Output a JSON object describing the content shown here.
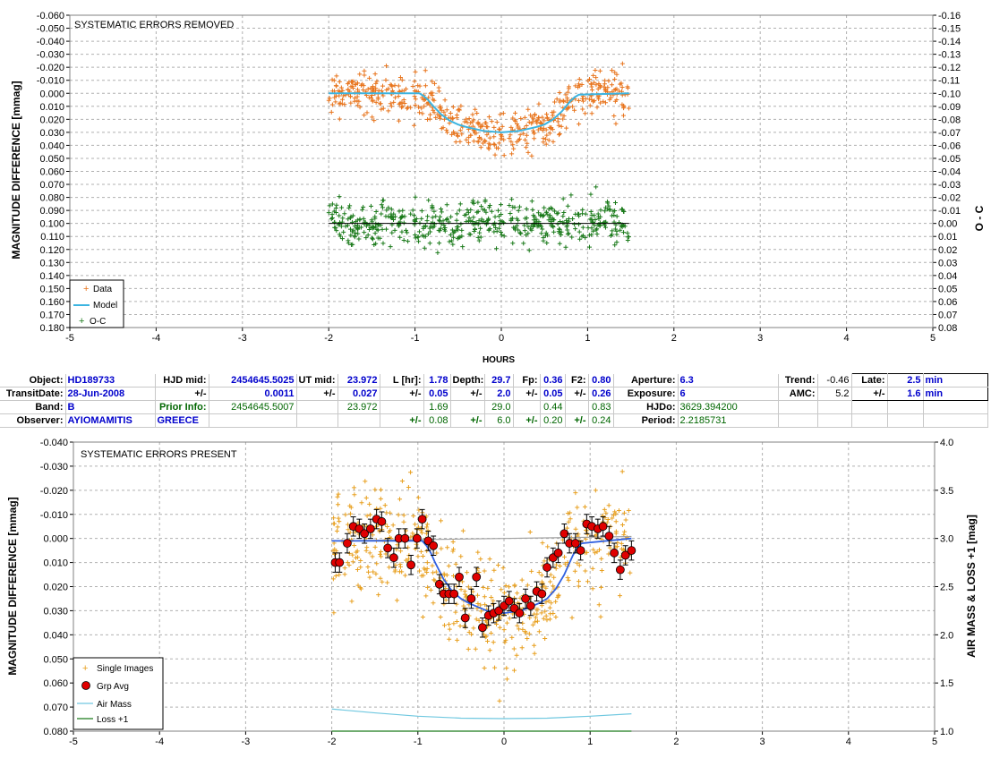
{
  "chart_data": [
    {
      "type": "scatter",
      "title": "SYSTEMATIC ERRORS REMOVED",
      "xlabel": "HOURS",
      "ylabel": "MAGNITUDE DIFFERENCE [mmag]",
      "y2label": "O - C",
      "xlim": [
        -5,
        5
      ],
      "ylim": [
        -0.06,
        0.18
      ],
      "y_inverted": true,
      "y2lim": [
        -0.16,
        0.08
      ],
      "y2_inverted": true,
      "grid": true,
      "legend_position": "bottom-left",
      "x_ticks": [
        "-5",
        "-4",
        "-3",
        "-2",
        "-1",
        "0",
        "1",
        "2",
        "3",
        "4",
        "5"
      ],
      "y_ticks": [
        "-0.060",
        "-0.050",
        "-0.040",
        "-0.030",
        "-0.020",
        "-0.010",
        "0.000",
        "0.010",
        "0.020",
        "0.030",
        "0.040",
        "0.050",
        "0.060",
        "0.070",
        "0.080",
        "0.090",
        "0.100",
        "0.110",
        "0.120",
        "0.130",
        "0.140",
        "0.150",
        "0.160",
        "0.170",
        "0.180"
      ],
      "y2_ticks": [
        "-0.16",
        "-0.15",
        "-0.14",
        "-0.13",
        "-0.12",
        "-0.11",
        "-0.10",
        "-0.09",
        "-0.08",
        "-0.07",
        "-0.06",
        "-0.05",
        "-0.04",
        "-0.03",
        "-0.02",
        "-0.01",
        "0.00",
        "0.01",
        "0.02",
        "0.03",
        "0.04",
        "0.05",
        "0.06",
        "0.07",
        "0.08"
      ],
      "series": [
        {
          "name": "Data",
          "color": "#e8741c",
          "marker": "plus",
          "count": 520,
          "x_range": [
            -2.0,
            1.48
          ],
          "scatter_sigma": 0.0085
        },
        {
          "name": "Model",
          "color": "#3cb4e0",
          "style": "line",
          "x": [
            -2.0,
            -0.95,
            -0.9,
            -0.85,
            -0.8,
            -0.7,
            -0.6,
            -0.5,
            -0.4,
            -0.2,
            0,
            0.2,
            0.4,
            0.5,
            0.6,
            0.7,
            0.75,
            0.8,
            0.85,
            0.9,
            1.48
          ],
          "y": [
            0,
            0,
            0.002,
            0.005,
            0.009,
            0.016,
            0.021,
            0.024,
            0.026,
            0.029,
            0.03,
            0.029,
            0.026,
            0.024,
            0.02,
            0.014,
            0.01,
            0.006,
            0.003,
            0.001,
            0
          ]
        },
        {
          "name": "O-C",
          "color": "#1a7a1a",
          "marker": "plus",
          "count": 520,
          "x_range": [
            -2.0,
            1.48
          ],
          "center": 0.0,
          "scatter_sigma": 0.0085,
          "axis": "y2"
        }
      ],
      "zero_line_y2": 0.0
    },
    {
      "type": "scatter",
      "title": "SYSTEMATIC ERRORS PRESENT",
      "xlabel": "",
      "ylabel": "MAGNITUDE DIFFERENCE [mmag]",
      "y2label": "AIR MASS & LOSS +1 [mag]",
      "xlim": [
        -5,
        5
      ],
      "ylim": [
        -0.04,
        0.08
      ],
      "y_inverted": true,
      "y2lim": [
        1.0,
        4.0
      ],
      "grid": true,
      "legend_position": "bottom-left",
      "x_ticks": [
        "-5",
        "-4",
        "-3",
        "-2",
        "-1",
        "0",
        "1",
        "2",
        "3",
        "4",
        "5"
      ],
      "y_ticks": [
        "-0.040",
        "-0.030",
        "-0.020",
        "-0.010",
        "0.000",
        "0.010",
        "0.020",
        "0.030",
        "0.040",
        "0.050",
        "0.060",
        "0.070",
        "0.080"
      ],
      "y2_ticks": [
        "1.0",
        "1.5",
        "2.0",
        "2.5",
        "3.0",
        "3.5",
        "4.0"
      ],
      "series": [
        {
          "name": "Single Images",
          "color": "#e8a020",
          "marker": "plus",
          "count": 520,
          "x_range": [
            -2.0,
            1.48
          ],
          "scatter_sigma": 0.0105
        },
        {
          "name": "Grp Avg",
          "color": "#e00000",
          "marker": "circle",
          "error_bars": true,
          "x": [
            -1.96,
            -1.91,
            -1.82,
            -1.75,
            -1.68,
            -1.62,
            -1.55,
            -1.48,
            -1.42,
            -1.35,
            -1.28,
            -1.22,
            -1.15,
            -1.08,
            -1.01,
            -0.95,
            -0.88,
            -0.82,
            -0.75,
            -0.7,
            -0.64,
            -0.58,
            -0.52,
            -0.45,
            -0.38,
            -0.32,
            -0.25,
            -0.18,
            -0.12,
            -0.06,
            0,
            0.06,
            0.12,
            0.18,
            0.25,
            0.31,
            0.38,
            0.44,
            0.5,
            0.57,
            0.63,
            0.7,
            0.76,
            0.83,
            0.89,
            0.96,
            1.02,
            1.09,
            1.15,
            1.22,
            1.28,
            1.35,
            1.41,
            1.48
          ],
          "y": [
            0.01,
            0.01,
            0.002,
            -0.005,
            -0.004,
            -0.002,
            -0.004,
            -0.008,
            -0.007,
            0.004,
            0.008,
            0.0,
            0.0,
            0.011,
            0.0,
            -0.008,
            0.001,
            0.003,
            0.019,
            0.023,
            0.023,
            0.023,
            0.016,
            0.033,
            0.025,
            0.016,
            0.037,
            0.032,
            0.031,
            0.03,
            0.028,
            0.026,
            0.029,
            0.031,
            0.025,
            0.028,
            0.022,
            0.023,
            0.012,
            0.008,
            0.006,
            -0.002,
            0.002,
            0.002,
            0.005,
            -0.006,
            -0.005,
            -0.004,
            -0.005,
            -0.001,
            0.006,
            0.013,
            0.007,
            0.005
          ],
          "err": 0.004
        },
        {
          "name": "Model",
          "color": "#3060e0",
          "style": "line",
          "x": [
            -2.0,
            -0.95,
            -0.9,
            -0.85,
            -0.8,
            -0.7,
            -0.6,
            -0.5,
            -0.4,
            -0.2,
            0,
            0.2,
            0.4,
            0.5,
            0.6,
            0.7,
            0.75,
            0.8,
            0.85,
            0.9,
            1.48
          ],
          "y": [
            0.001,
            0.001,
            0.003,
            0.006,
            0.01,
            0.017,
            0.022,
            0.025,
            0.027,
            0.03,
            0.031,
            0.03,
            0.027,
            0.025,
            0.021,
            0.015,
            0.011,
            0.007,
            0.004,
            0.002,
            0.0
          ]
        },
        {
          "name": "Air Mass",
          "color": "#70c8e0",
          "style": "line",
          "axis": "y2",
          "x": [
            -2.0,
            -1.5,
            -1.0,
            -0.5,
            0,
            0.5,
            1.0,
            1.48
          ],
          "y": [
            1.23,
            1.19,
            1.155,
            1.135,
            1.13,
            1.135,
            1.155,
            1.18
          ]
        },
        {
          "name": "Loss +1",
          "color": "#1a7a1a",
          "style": "line",
          "axis": "y2",
          "x": [
            -2.0,
            1.48
          ],
          "y": [
            1.0,
            1.0
          ]
        },
        {
          "name": "",
          "color": "#a0a0a0",
          "style": "line",
          "x": [
            -2.0,
            -1.0,
            0,
            1.0,
            1.48
          ],
          "y": [
            0.001,
            0.0005,
            0.0,
            -0.0005,
            -0.0008
          ]
        }
      ]
    }
  ],
  "info": {
    "row1": {
      "object_label": "Object:",
      "object": "HD189733",
      "hjd_mid_label": "HJD mid:",
      "hjd_mid": "2454645.5025",
      "ut_mid_label": "UT mid:",
      "ut_mid": "23.972",
      "l_label": "L [hr]:",
      "l": "1.78",
      "depth_label": "Depth:",
      "depth": "29.7",
      "fp_label": "Fp:",
      "fp": "0.36",
      "f2_label": "F2:",
      "f2": "0.80",
      "aperture_label": "Aperture:",
      "aperture": "6.3",
      "trend_label": "Trend:",
      "trend": "-0.46",
      "late_label": "Late:",
      "late": "2.5",
      "late_unit": "min"
    },
    "row2": {
      "transit_label": "TransitDate:",
      "transit": "28-Jun-2008",
      "pm1": "+/-",
      "hjd_err": "0.0011",
      "pm2": "+/-",
      "ut_err": "0.027",
      "pm3": "+/-",
      "l_err": "0.05",
      "pm4": "+/-",
      "depth_err": "2.0",
      "pm5": "+/-",
      "fp_err": "0.05",
      "pm6": "+/-",
      "f2_err": "0.26",
      "exposure_label": "Exposure:",
      "exposure": "6",
      "amc_label": "AMC:",
      "amc": "5.2",
      "pm7": "+/-",
      "late_err": "1.6",
      "late_err_unit": "min"
    },
    "row3": {
      "band_label": "Band:",
      "band": "B",
      "prior_label": "Prior Info:",
      "prior_hjd": "2454645.5007",
      "prior_ut": "23.972",
      "prior_l": "1.69",
      "prior_depth": "29.0",
      "prior_fp": "0.44",
      "prior_f2": "0.83",
      "hjdo_label": "HJDo:",
      "hjdo": "3629.394200"
    },
    "row4": {
      "observer_label": "Observer:",
      "observer": "AYIOMAMITIS",
      "country": "GREECE",
      "pm1": "+/-",
      "l_err": "0.08",
      "pm2": "+/-",
      "depth_err": "6.0",
      "pm3": "+/-",
      "fp_err": "0.20",
      "pm4": "+/-",
      "f2_err": "0.24",
      "period_label": "Period:",
      "period": "2.2185731"
    }
  }
}
